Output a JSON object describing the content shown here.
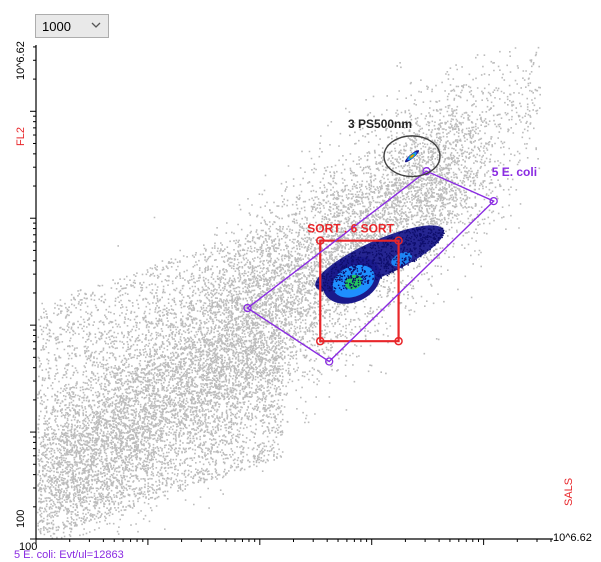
{
  "toolbar": {
    "event_count_value": "1000",
    "event_count_icon": "chevron-down-icon"
  },
  "footer": {
    "stat_text": "5 E. coli: Evt/ul=12863"
  },
  "colors": {
    "background_events": "#bcbcbc",
    "gate_sort": "#e8262a",
    "gate_ecoli": "#8a2be2",
    "gate_ps": "#404040",
    "axis_label": "#e8262a",
    "density_low": "#1a1a8c",
    "density_mid": "#1e90ff",
    "density_high": "#22c55e"
  },
  "chart_data": {
    "type": "scatter",
    "title": "",
    "xlabel": "SALS",
    "ylabel": "FL2",
    "x_scale": "log",
    "y_scale": "log",
    "xlim": [
      100,
      4168694
    ],
    "ylim": [
      100,
      4168694
    ],
    "x_ticks": {
      "min_label": "100",
      "max_label": "10^6.62"
    },
    "y_ticks": {
      "min_label": "100",
      "max_label": "10^6.62"
    },
    "x_min_tick_label": "100",
    "x_max_tick_label": "10^6.62",
    "y_min_tick_label": "100",
    "y_max_tick_label": "10^6.62",
    "gates": [
      {
        "name": "SORT . 6 SORT",
        "shape": "rectangle",
        "vertices_log10": [
          [
            4.54,
            4.79
          ],
          [
            5.24,
            4.79
          ],
          [
            5.24,
            3.85
          ],
          [
            4.54,
            3.85
          ]
        ]
      },
      {
        "name": "5 E. coli",
        "shape": "polygon",
        "vertices_log10": [
          [
            3.89,
            4.16
          ],
          [
            5.49,
            5.44
          ],
          [
            6.09,
            5.16
          ],
          [
            4.62,
            3.66
          ]
        ]
      },
      {
        "name": "3 PS500nm",
        "shape": "ellipse",
        "center_log10": [
          5.36,
          5.58
        ],
        "radii_log10": [
          0.25,
          0.19
        ]
      }
    ],
    "populations": [
      {
        "name": "main E. coli cluster",
        "center_log10": [
          4.82,
          4.42
        ]
      },
      {
        "name": "PS500nm beads",
        "center_log10": [
          5.36,
          5.58
        ]
      }
    ]
  }
}
